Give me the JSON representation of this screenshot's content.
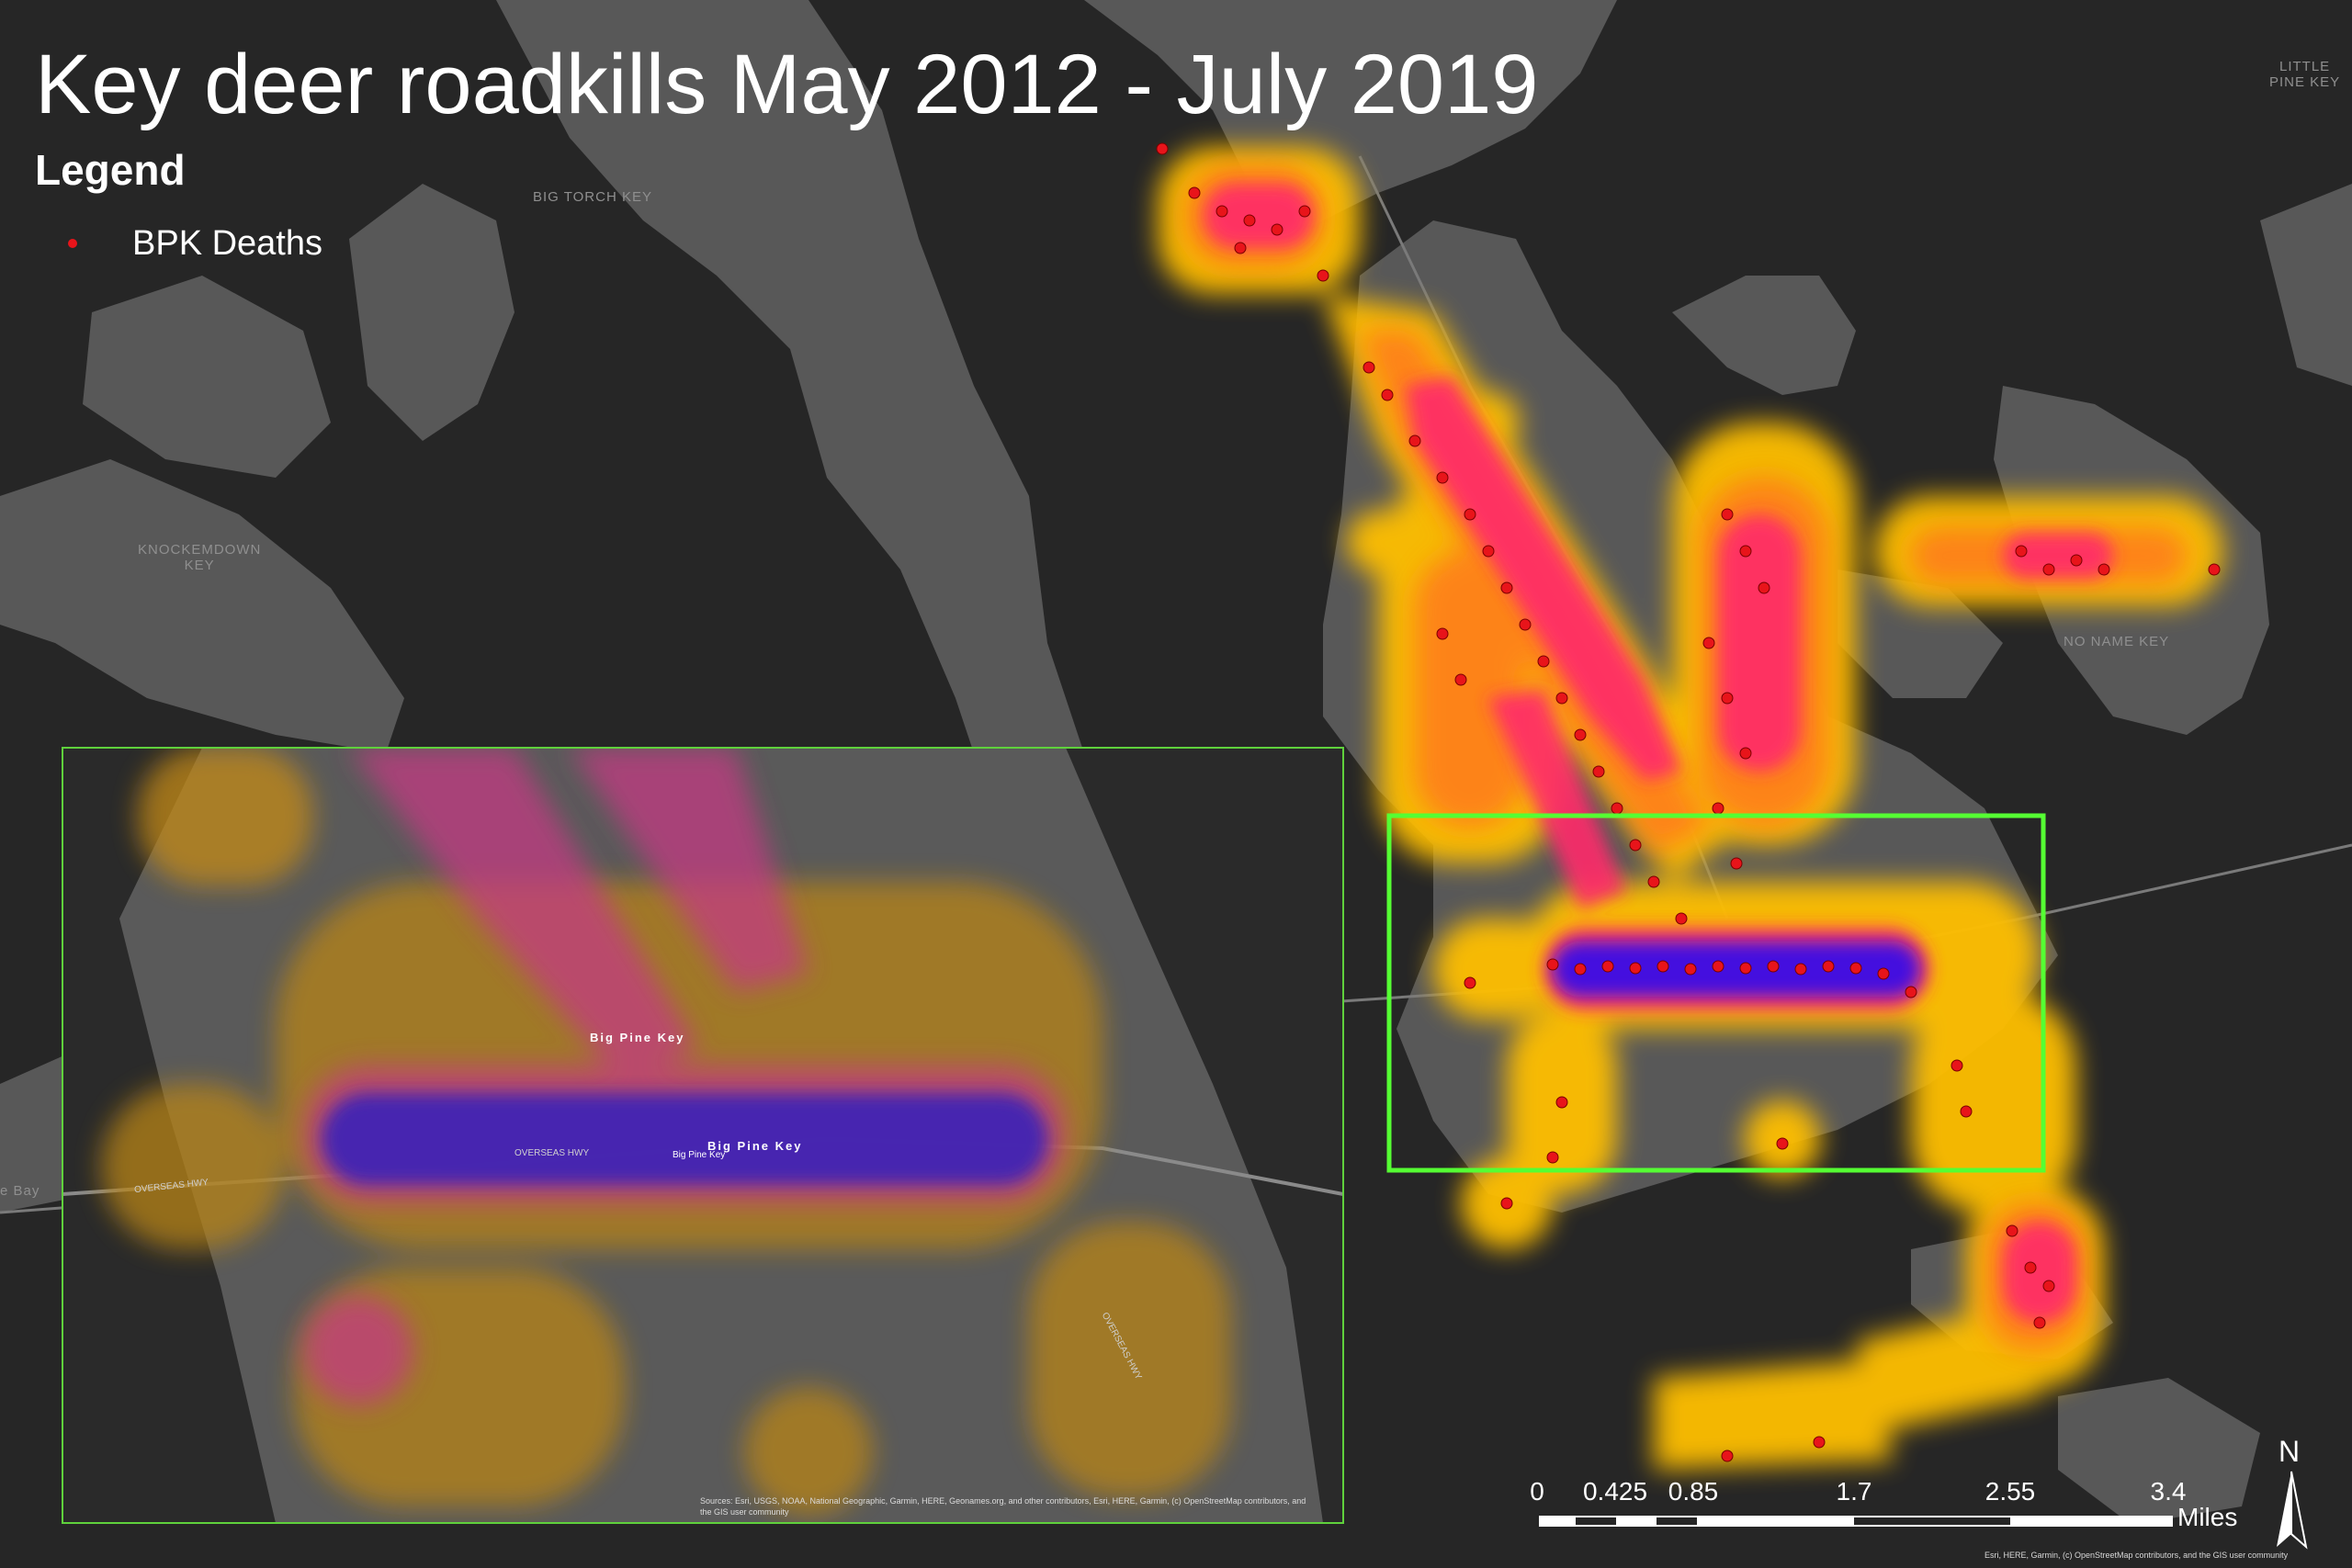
{
  "title": "Key deer roadkills May 2012 - July 2019",
  "legend": {
    "title": "Legend",
    "items": [
      {
        "label": "BPK Deaths",
        "color": "#e8141a",
        "symbol": "point"
      }
    ]
  },
  "place_labels": {
    "big_torch_key": "BIG TORCH KEY",
    "knockemdown_key": "KNOCKEMDOWN\nKEY",
    "little_pine_key": "LITTLE\nPINE KEY",
    "no_name_key": "NO NAME KEY",
    "bay": "e Bay"
  },
  "inset": {
    "labels": {
      "big_pine_key_1": "Big Pine Key",
      "big_pine_key_2": "Big Pine Key",
      "big_pine_key_3": "Big Pine Key"
    },
    "roads": {
      "overseas_hwy_1": "OVERSEAS HWY",
      "overseas_hwy_2": "OVERSEAS HWY",
      "overseas_hwy_3": "OVERSEAS HWY"
    },
    "attribution": "Sources: Esri, USGS, NOAA, National Geographic, Garmin, HERE, Geonames.org, and other contributors, Esri, HERE, Garmin, (c) OpenStreetMap contributors, and the GIS user community"
  },
  "scale_bar": {
    "ticks": [
      "0",
      "0.425",
      "0.85",
      "1.7",
      "2.55",
      "3.4"
    ],
    "units": "Miles"
  },
  "north_arrow": {
    "label": "N"
  },
  "attribution": "Esri, HERE, Garmin, (c) OpenStreetMap contributors, and the GIS user community",
  "colors": {
    "background": "#262626",
    "land": "#555555",
    "heat_low": "#ffc400",
    "heat_mid": "#ff2e6e",
    "heat_high": "#3a12e8",
    "point": "#e8141a",
    "inset_frame": "#5fd13c",
    "extent_box": "#55ff33"
  }
}
